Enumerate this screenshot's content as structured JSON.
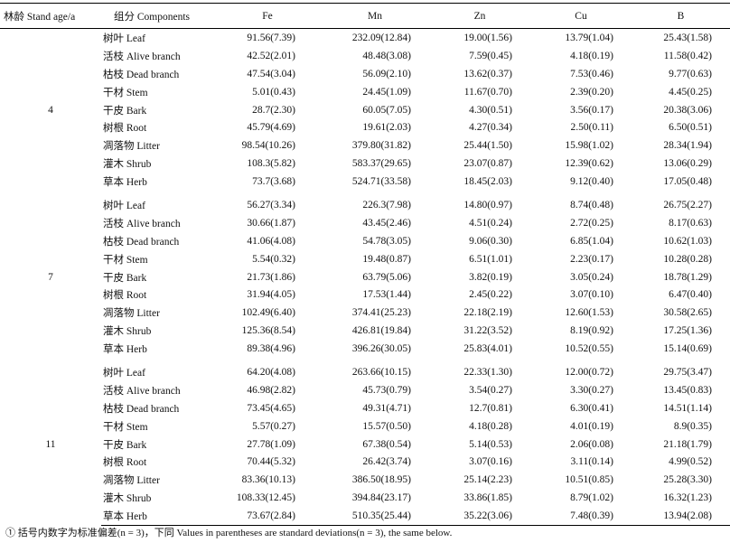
{
  "headers": {
    "age": "林龄 Stand age/a",
    "components": "组分 Components",
    "fe": "Fe",
    "mn": "Mn",
    "zn": "Zn",
    "cu": "Cu",
    "b": "B"
  },
  "groups": [
    {
      "age": "4",
      "rows": [
        [
          "树叶 Leaf",
          "91.56(7.39)",
          "232.09(12.84)",
          "19.00(1.56)",
          "13.79(1.04)",
          "25.43(1.58)"
        ],
        [
          "活枝 Alive branch",
          "42.52(2.01)",
          "48.48(3.08)",
          "7.59(0.45)",
          "4.18(0.19)",
          "11.58(0.42)"
        ],
        [
          "枯枝 Dead branch",
          "47.54(3.04)",
          "56.09(2.10)",
          "13.62(0.37)",
          "7.53(0.46)",
          "9.77(0.63)"
        ],
        [
          "干材 Stem",
          "5.01(0.43)",
          "24.45(1.09)",
          "11.67(0.70)",
          "2.39(0.20)",
          "4.45(0.25)"
        ],
        [
          "干皮 Bark",
          "28.7(2.30)",
          "60.05(7.05)",
          "4.30(0.51)",
          "3.56(0.17)",
          "20.38(3.06)"
        ],
        [
          "树根 Root",
          "45.79(4.69)",
          "19.61(2.03)",
          "4.27(0.34)",
          "2.50(0.11)",
          "6.50(0.51)"
        ],
        [
          "凋落物 Litter",
          "98.54(10.26)",
          "379.80(31.82)",
          "25.44(1.50)",
          "15.98(1.02)",
          "28.34(1.94)"
        ],
        [
          "灌木 Shrub",
          "108.3(5.82)",
          "583.37(29.65)",
          "23.07(0.87)",
          "12.39(0.62)",
          "13.06(0.29)"
        ],
        [
          "草本 Herb",
          "73.7(3.68)",
          "524.71(33.58)",
          "18.45(2.03)",
          "9.12(0.40)",
          "17.05(0.48)"
        ]
      ]
    },
    {
      "age": "7",
      "rows": [
        [
          "树叶 Leaf",
          "56.27(3.34)",
          "226.3(7.98)",
          "14.80(0.97)",
          "8.74(0.48)",
          "26.75(2.27)"
        ],
        [
          "活枝 Alive branch",
          "30.66(1.87)",
          "43.45(2.46)",
          "4.51(0.24)",
          "2.72(0.25)",
          "8.17(0.63)"
        ],
        [
          "枯枝 Dead branch",
          "41.06(4.08)",
          "54.78(3.05)",
          "9.06(0.30)",
          "6.85(1.04)",
          "10.62(1.03)"
        ],
        [
          "干材 Stem",
          "5.54(0.32)",
          "19.48(0.87)",
          "6.51(1.01)",
          "2.23(0.17)",
          "10.28(0.28)"
        ],
        [
          "干皮 Bark",
          "21.73(1.86)",
          "63.79(5.06)",
          "3.82(0.19)",
          "3.05(0.24)",
          "18.78(1.29)"
        ],
        [
          "树根 Root",
          "31.94(4.05)",
          "17.53(1.44)",
          "2.45(0.22)",
          "3.07(0.10)",
          "6.47(0.40)"
        ],
        [
          "凋落物 Litter",
          "102.49(6.40)",
          "374.41(25.23)",
          "22.18(2.19)",
          "12.60(1.53)",
          "30.58(2.65)"
        ],
        [
          "灌木 Shrub",
          "125.36(8.54)",
          "426.81(19.84)",
          "31.22(3.52)",
          "8.19(0.92)",
          "17.25(1.36)"
        ],
        [
          "草本 Herb",
          "89.38(4.96)",
          "396.26(30.05)",
          "25.83(4.01)",
          "10.52(0.55)",
          "15.14(0.69)"
        ]
      ]
    },
    {
      "age": "11",
      "rows": [
        [
          "树叶 Leaf",
          "64.20(4.08)",
          "263.66(10.15)",
          "22.33(1.30)",
          "12.00(0.72)",
          "29.75(3.47)"
        ],
        [
          "活枝 Alive branch",
          "46.98(2.82)",
          "45.73(0.79)",
          "3.54(0.27)",
          "3.30(0.27)",
          "13.45(0.83)"
        ],
        [
          "枯枝 Dead branch",
          "73.45(4.65)",
          "49.31(4.71)",
          "12.7(0.81)",
          "6.30(0.41)",
          "14.51(1.14)"
        ],
        [
          "干材 Stem",
          "5.57(0.27)",
          "15.57(0.50)",
          "4.18(0.28)",
          "4.01(0.19)",
          "8.9(0.35)"
        ],
        [
          "干皮 Bark",
          "27.78(1.09)",
          "67.38(0.54)",
          "5.14(0.53)",
          "2.06(0.08)",
          "21.18(1.79)"
        ],
        [
          "树根 Root",
          "70.44(5.32)",
          "26.42(3.74)",
          "3.07(0.16)",
          "3.11(0.14)",
          "4.99(0.52)"
        ],
        [
          "凋落物 Litter",
          "83.36(10.13)",
          "386.50(18.95)",
          "25.14(2.23)",
          "10.51(0.85)",
          "25.28(3.30)"
        ],
        [
          "灌木 Shrub",
          "108.33(12.45)",
          "394.84(23.17)",
          "33.86(1.85)",
          "8.79(1.02)",
          "16.32(1.23)"
        ],
        [
          "草本 Herb",
          "73.67(2.84)",
          "510.35(25.44)",
          "35.22(3.06)",
          "7.48(0.39)",
          "13.94(2.08)"
        ]
      ]
    }
  ],
  "footnote": "① 括号内数字为标准偏差(n = 3)，下同 Values in parentheses are standard deviations(n = 3), the same below."
}
